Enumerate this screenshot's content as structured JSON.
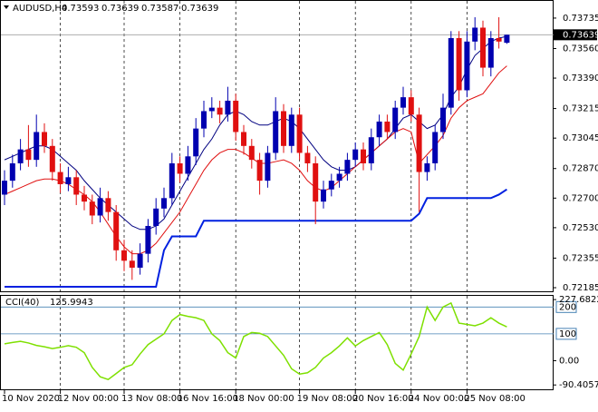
{
  "chart_data": {
    "type": "candlestick",
    "symbol": "AUDUSD,H4",
    "x": [
      "10 Nov 2020",
      null,
      null,
      null,
      null,
      null,
      null,
      "12 Nov 00:00",
      null,
      null,
      null,
      null,
      null,
      null,
      null,
      "13 Nov 08:00",
      null,
      null,
      null,
      null,
      null,
      null,
      "16 Nov 16:00",
      null,
      null,
      null,
      null,
      null,
      null,
      "18 Nov 00:00",
      null,
      null,
      null,
      null,
      null,
      null,
      null,
      "19 Nov 08:00",
      null,
      null,
      null,
      null,
      null,
      null,
      "20 Nov 16:00",
      null,
      null,
      null,
      null,
      null,
      null,
      "24 Nov 00:00",
      null,
      null,
      null,
      null,
      null,
      null,
      "25 Nov 08:00",
      null,
      null,
      null,
      null,
      null
    ],
    "open": [
      0.7272,
      0.728,
      0.729,
      0.7298,
      0.7292,
      0.7308,
      0.73,
      0.7285,
      0.7278,
      0.7282,
      0.7272,
      0.7268,
      0.726,
      0.727,
      0.7262,
      0.724,
      0.7234,
      0.723,
      0.7238,
      0.7254,
      0.7264,
      0.727,
      0.729,
      0.7284,
      0.7294,
      0.731,
      0.732,
      0.7322,
      0.7318,
      0.7326,
      0.7308,
      0.73,
      0.7292,
      0.728,
      0.7296,
      0.732,
      0.73,
      0.7318,
      0.7296,
      0.729,
      0.7268,
      0.7275,
      0.728,
      0.7284,
      0.7292,
      0.7298,
      0.729,
      0.7305,
      0.7314,
      0.7308,
      0.7322,
      0.7328,
      0.7318,
      0.7285,
      0.729,
      0.7308,
      0.7322,
      0.7362,
      0.7332,
      0.736,
      0.7368,
      0.7345,
      0.7362,
      0.73593
    ],
    "high": [
      0.7286,
      0.7295,
      0.7304,
      0.7312,
      0.7318,
      0.7313,
      0.7304,
      0.729,
      0.7288,
      0.7286,
      0.7277,
      0.7272,
      0.7276,
      0.7274,
      0.7266,
      0.7246,
      0.724,
      0.7244,
      0.7258,
      0.727,
      0.7276,
      0.7296,
      0.7294,
      0.73,
      0.7316,
      0.7326,
      0.7328,
      0.7326,
      0.7334,
      0.733,
      0.7312,
      0.7304,
      0.7296,
      0.73,
      0.7328,
      0.7324,
      0.7322,
      0.7322,
      0.73,
      0.7294,
      0.728,
      0.7284,
      0.7288,
      0.7296,
      0.7302,
      0.7302,
      0.731,
      0.7318,
      0.7318,
      0.7326,
      0.7334,
      0.7332,
      0.7322,
      0.7294,
      0.7312,
      0.733,
      0.7366,
      0.7366,
      0.7366,
      0.7374,
      0.7372,
      0.7366,
      0.7374,
      0.73639
    ],
    "low": [
      0.7266,
      0.7276,
      0.7286,
      0.7288,
      0.7288,
      0.7296,
      0.728,
      0.7273,
      0.7274,
      0.7266,
      0.7263,
      0.7255,
      0.7256,
      0.7257,
      0.7234,
      0.7228,
      0.7223,
      0.7226,
      0.7233,
      0.7249,
      0.7259,
      0.7266,
      0.7279,
      0.728,
      0.7289,
      0.7305,
      0.7316,
      0.7313,
      0.7314,
      0.7303,
      0.7295,
      0.7287,
      0.7272,
      0.7276,
      0.7292,
      0.7296,
      0.7296,
      0.7292,
      0.7285,
      0.7255,
      0.7264,
      0.7271,
      0.7276,
      0.728,
      0.7288,
      0.7286,
      0.7286,
      0.73,
      0.7304,
      0.7304,
      0.7318,
      0.7314,
      0.7262,
      0.728,
      0.7286,
      0.7304,
      0.7318,
      0.7326,
      0.7328,
      0.7355,
      0.734,
      0.734,
      0.7356,
      0.73587
    ],
    "close": [
      0.728,
      0.729,
      0.7298,
      0.7292,
      0.7308,
      0.73,
      0.7285,
      0.7278,
      0.7282,
      0.7272,
      0.7268,
      0.726,
      0.727,
      0.7262,
      0.724,
      0.7234,
      0.723,
      0.7238,
      0.7254,
      0.7264,
      0.727,
      0.729,
      0.7284,
      0.7294,
      0.731,
      0.732,
      0.7322,
      0.7318,
      0.7326,
      0.7308,
      0.73,
      0.7292,
      0.728,
      0.7296,
      0.732,
      0.73,
      0.7318,
      0.7296,
      0.729,
      0.7268,
      0.7275,
      0.728,
      0.7284,
      0.7292,
      0.7298,
      0.729,
      0.7305,
      0.7314,
      0.7308,
      0.7322,
      0.7328,
      0.7318,
      0.7285,
      0.729,
      0.7308,
      0.7322,
      0.7362,
      0.7332,
      0.736,
      0.7368,
      0.7345,
      0.7362,
      0.736,
      0.73639
    ],
    "up_color": "#0000b0",
    "down_color": "#e01010",
    "series": [
      {
        "color": "#000080",
        "values": [
          0.7292,
          0.7294,
          0.7296,
          0.7298,
          0.73,
          0.73,
          0.7298,
          0.7294,
          0.729,
          0.7286,
          0.728,
          0.7275,
          0.727,
          0.7266,
          0.7262,
          0.7258,
          0.7254,
          0.7252,
          0.7252,
          0.7254,
          0.7258,
          0.7266,
          0.7274,
          0.7282,
          0.729,
          0.7298,
          0.7304,
          0.7312,
          0.7318,
          0.732,
          0.7318,
          0.7314,
          0.7312,
          0.7312,
          0.7314,
          0.7316,
          0.7314,
          0.731,
          0.7304,
          0.7298,
          0.7292,
          0.7288,
          0.7286,
          0.7286,
          0.7288,
          0.7292,
          0.7296,
          0.73,
          0.7304,
          0.731,
          0.7316,
          0.7318,
          0.7314,
          0.731,
          0.7312,
          0.7318,
          0.7328,
          0.7334,
          0.7344,
          0.7352,
          0.7356,
          0.736,
          0.7362,
          0.7363
        ]
      },
      {
        "color": "#e01010",
        "values": [
          0.7272,
          0.7274,
          0.7276,
          0.7278,
          0.728,
          0.7281,
          0.7281,
          0.728,
          0.7278,
          0.7275,
          0.7272,
          0.7268,
          0.7262,
          0.7255,
          0.7248,
          0.7242,
          0.7238,
          0.7238,
          0.724,
          0.7244,
          0.725,
          0.7256,
          0.7262,
          0.727,
          0.7278,
          0.7286,
          0.7292,
          0.7296,
          0.7298,
          0.7298,
          0.7296,
          0.7293,
          0.729,
          0.729,
          0.7291,
          0.7292,
          0.729,
          0.7286,
          0.728,
          0.7276,
          0.7274,
          0.7276,
          0.728,
          0.7284,
          0.7288,
          0.7292,
          0.7296,
          0.73,
          0.7304,
          0.7308,
          0.731,
          0.7308,
          0.729,
          0.7295,
          0.73,
          0.7306,
          0.7316,
          0.7322,
          0.7326,
          0.7328,
          0.733,
          0.7336,
          0.7342,
          0.7346
        ]
      },
      {
        "color": "#0020e0",
        "values": [
          0.7219,
          0.7219,
          0.7219,
          0.7219,
          0.7219,
          0.7219,
          0.7219,
          0.7219,
          0.7219,
          0.7219,
          0.7219,
          0.7219,
          0.7219,
          0.7219,
          0.7219,
          0.7219,
          0.7219,
          0.7219,
          0.7219,
          0.7219,
          0.724,
          0.7248,
          0.7248,
          0.7248,
          0.7248,
          0.7257,
          0.7257,
          0.7257,
          0.7257,
          0.7257,
          0.7257,
          0.7257,
          0.7257,
          0.7257,
          0.7257,
          0.7257,
          0.7257,
          0.7257,
          0.7257,
          0.7257,
          0.7257,
          0.7257,
          0.7257,
          0.7257,
          0.7257,
          0.7257,
          0.7257,
          0.7257,
          0.7257,
          0.7257,
          0.7257,
          0.7257,
          0.7261,
          0.727,
          0.727,
          0.727,
          0.727,
          0.727,
          0.727,
          0.727,
          0.727,
          0.727,
          0.7272,
          0.7275
        ]
      }
    ],
    "ylim": [
      0.72159,
      0.73839
    ],
    "yticks": [
      0.73735,
      {
        "value": 0.7356,
        "label": "0.73560"
      },
      {
        "value": 0.7339,
        "label": "0.73390"
      },
      0.73215,
      0.73045,
      {
        "value": 0.7287,
        "label": "0.72870"
      },
      {
        "value": 0.727,
        "label": "0.72700"
      },
      {
        "value": 0.7253,
        "label": "0.72530"
      },
      0.72355,
      0.72185
    ],
    "grid": true,
    "indicator": {
      "label": "CCI(40)",
      "color": "#7ee000",
      "values": [
        63,
        68,
        72,
        66,
        57,
        52,
        45,
        50,
        56,
        50,
        30,
        -25,
        -60,
        -70,
        -48,
        -25,
        -15,
        25,
        60,
        80,
        100,
        150,
        172,
        165,
        160,
        150,
        100,
        75,
        30,
        10,
        90,
        105,
        102,
        90,
        55,
        20,
        -30,
        -50,
        -45,
        -25,
        10,
        30,
        55,
        85,
        55,
        75,
        90,
        105,
        60,
        -10,
        -35,
        25,
        90,
        200,
        150,
        200,
        215,
        140,
        135,
        130,
        140,
        160,
        140,
        125.9943
      ],
      "ylim": [
        -110,
        245
      ],
      "yticks": [
        227.6822,
        {
          "value": 0,
          "label": "0.00"
        },
        -90.4057
      ],
      "levels": [
        200,
        100
      ]
    }
  }
}
